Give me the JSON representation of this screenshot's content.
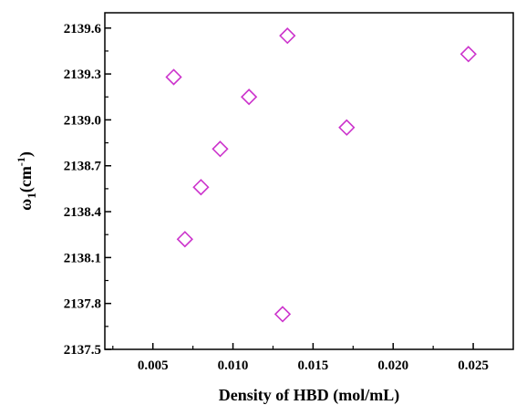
{
  "chart_data": {
    "type": "scatter",
    "xlabel": "Density of HBD (mol/mL)",
    "ylabel_base": "ω",
    "ylabel_sub": "1",
    "ylabel_unit_open": "(cm",
    "ylabel_sup": "-1",
    "ylabel_unit_close": ")",
    "xlim": [
      0.002,
      0.0275
    ],
    "ylim": [
      2137.5,
      2139.7
    ],
    "xticks": [
      "0.005",
      "0.010",
      "0.015",
      "0.020",
      "0.025"
    ],
    "yticks": [
      "2137.5",
      "2137.8",
      "2138.1",
      "2138.4",
      "2138.7",
      "2139.0",
      "2139.3",
      "2139.6"
    ],
    "marker": "diamond-open",
    "marker_color": "#cc33cc",
    "grid": false,
    "points": [
      {
        "x": 0.0063,
        "y": 2139.28
      },
      {
        "x": 0.007,
        "y": 2138.22
      },
      {
        "x": 0.008,
        "y": 2138.56
      },
      {
        "x": 0.0092,
        "y": 2138.81
      },
      {
        "x": 0.011,
        "y": 2139.15
      },
      {
        "x": 0.0131,
        "y": 2137.73
      },
      {
        "x": 0.0134,
        "y": 2139.55
      },
      {
        "x": 0.0171,
        "y": 2138.95
      },
      {
        "x": 0.0247,
        "y": 2139.43
      }
    ]
  }
}
